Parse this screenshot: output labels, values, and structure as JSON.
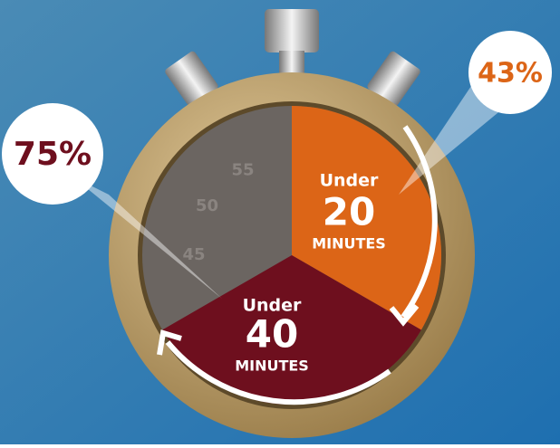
{
  "chart_data": {
    "type": "stopwatch",
    "dial_lim": [
      0,
      60
    ],
    "dial_labels": [
      55,
      50,
      45
    ],
    "segments": [
      {
        "top": "Under",
        "minutes": 20,
        "bottom": "MINUTES",
        "color": "#dc6517",
        "percent": 43,
        "percent_label": "43%",
        "percent_color": "#dc6517"
      },
      {
        "top": "Under",
        "minutes": 40,
        "bottom": "MINUTES",
        "color": "#6e0f1e",
        "percent": 75,
        "percent_label": "75%",
        "percent_color": "#6e0f1e"
      }
    ]
  }
}
